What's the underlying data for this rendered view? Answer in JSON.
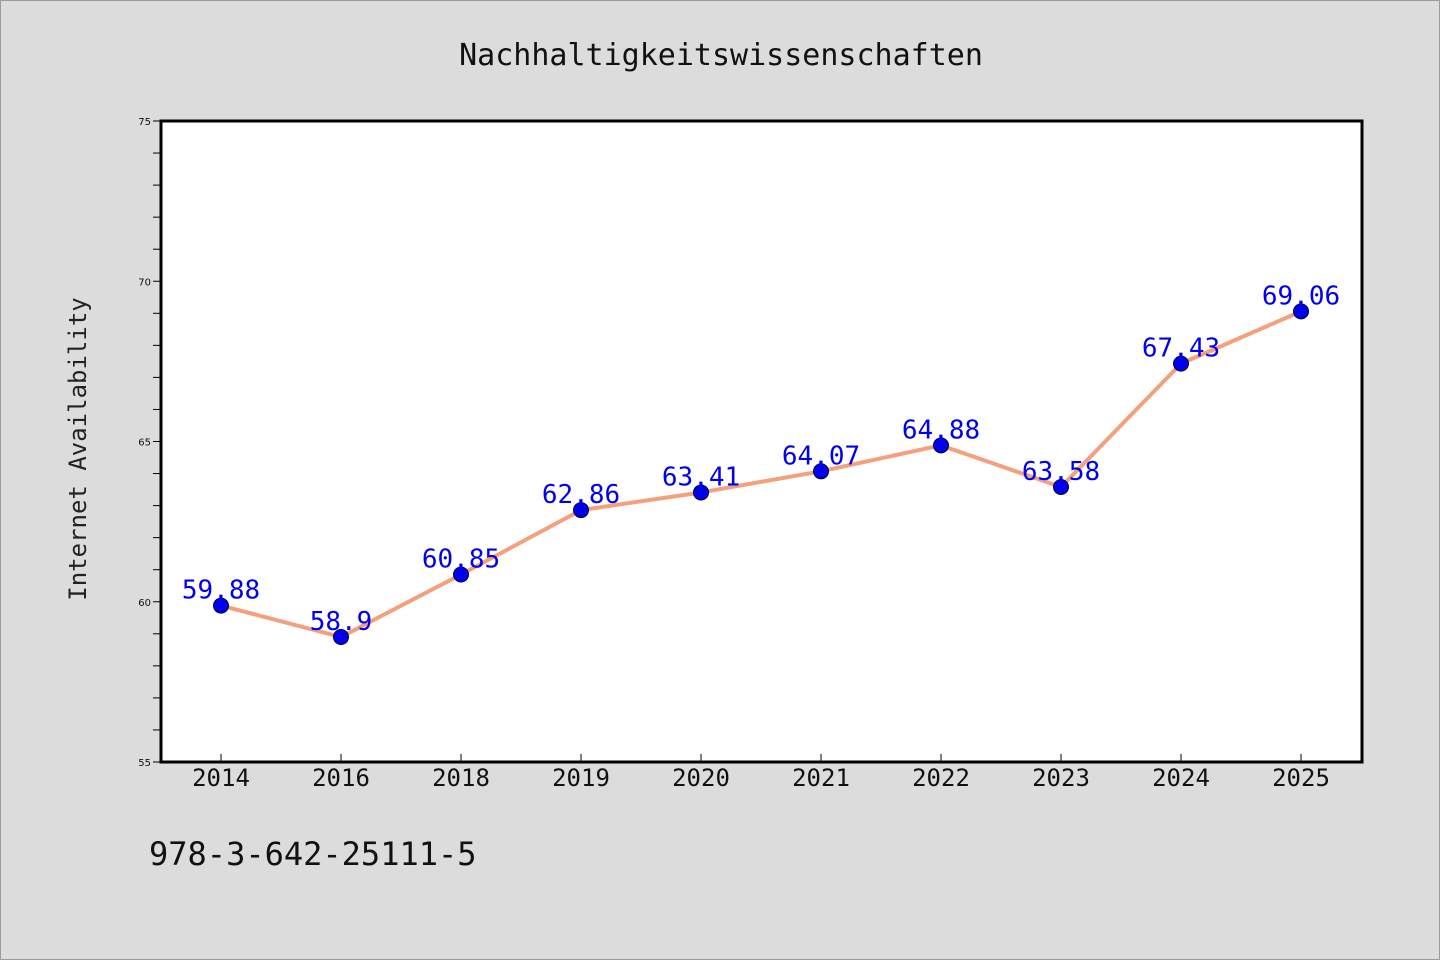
{
  "chart_data": {
    "type": "line",
    "title": "Nachhaltigkeitswissenschaften",
    "xlabel": "",
    "ylabel": "Internet Availability",
    "categories": [
      "2014",
      "2016",
      "2018",
      "2019",
      "2020",
      "2021",
      "2022",
      "2023",
      "2024",
      "2025"
    ],
    "series": [
      {
        "values": [
          59.88,
          58.9,
          60.85,
          62.86,
          63.41,
          64.07,
          64.88,
          63.58,
          67.43,
          69.06
        ],
        "labels": [
          "59.88",
          "58.9",
          "60.85",
          "62.86",
          "63.41",
          "64.07",
          "64.88",
          "63.58",
          "67.43",
          "69.06"
        ],
        "line_color": "#f4a07c",
        "marker_color": "#0000ee",
        "label_color": "#0000ee"
      }
    ],
    "ylim": [
      55,
      75
    ],
    "yticks": [
      "55",
      "60",
      "65",
      "70",
      "75"
    ],
    "grid": false,
    "legend": "none"
  },
  "footer": {
    "text": "978-3-642-25111-5"
  },
  "colors": {
    "background": "#dcdcdc",
    "plot_background": "#ffffff"
  }
}
